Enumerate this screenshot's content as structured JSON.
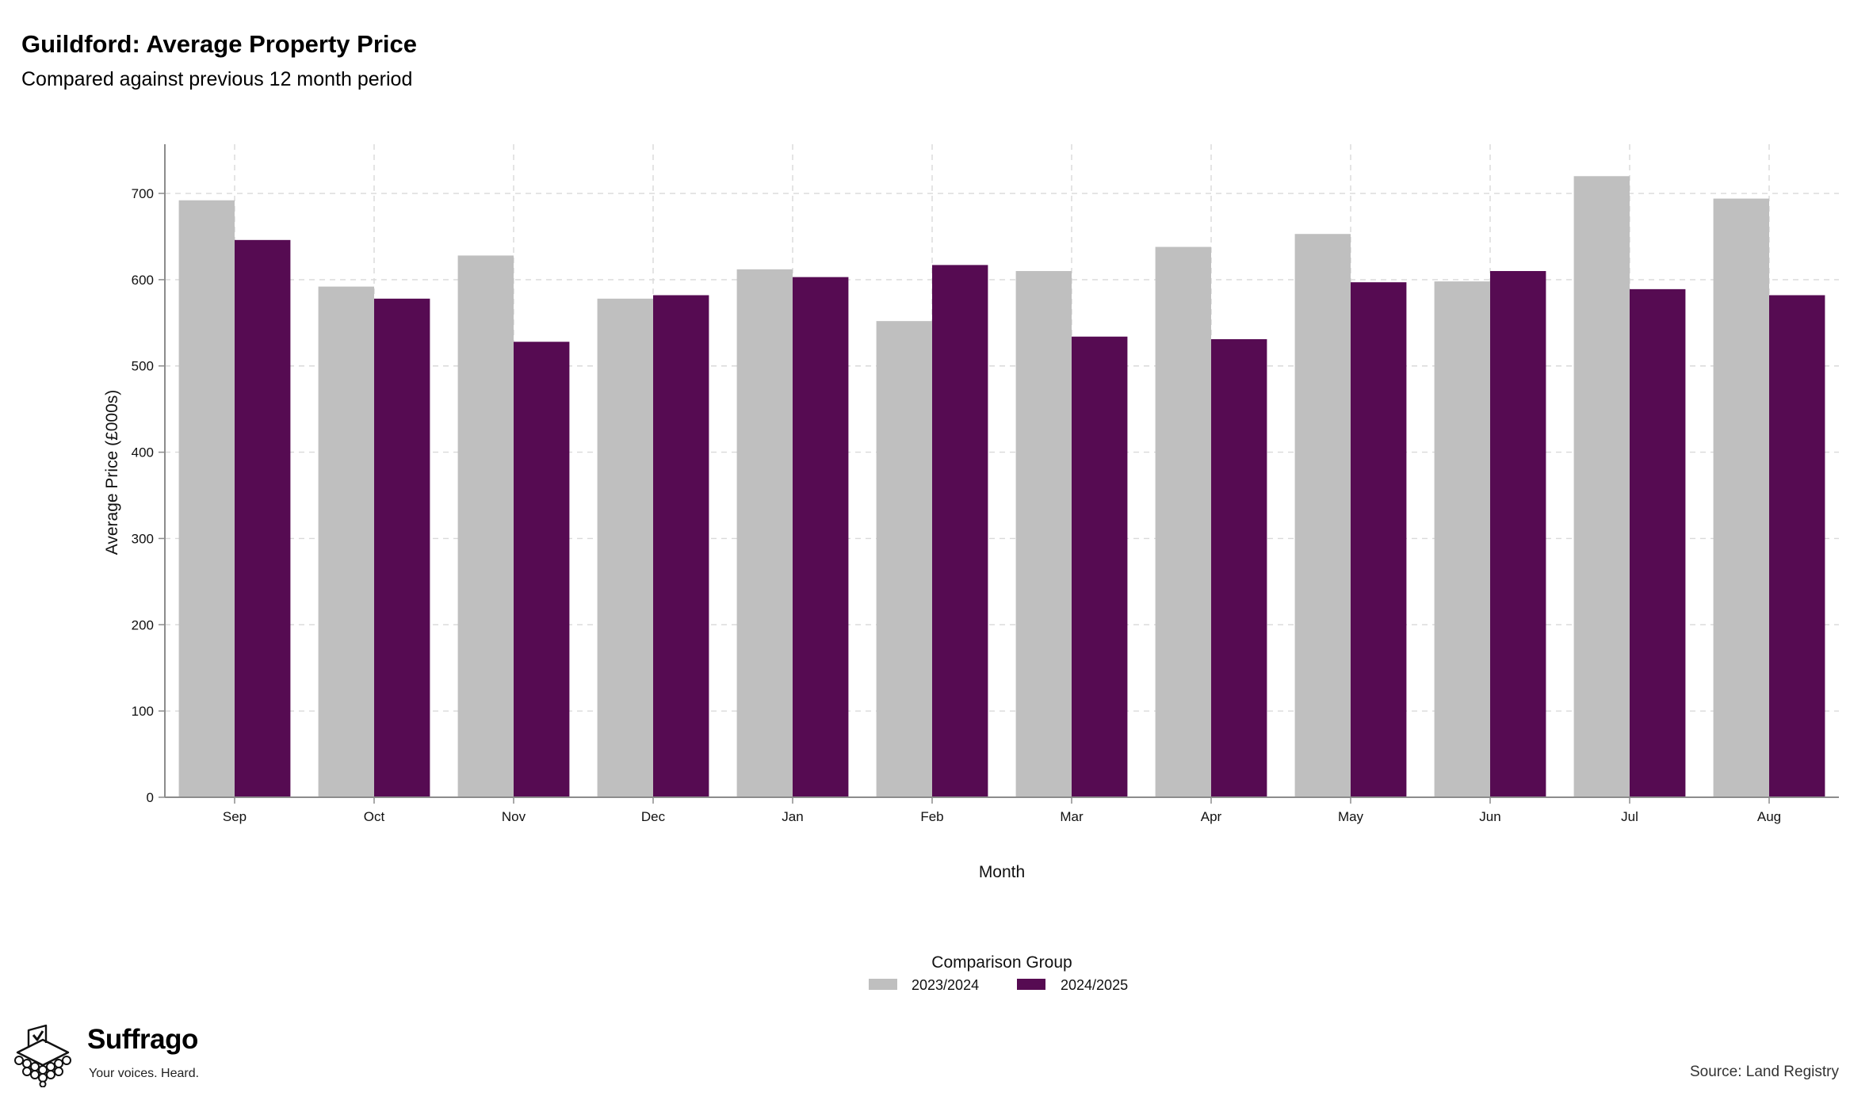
{
  "title": "Guildford: Average Property Price",
  "subtitle": "Compared against previous 12 month period",
  "logo": {
    "name": "Suffrago",
    "tagline": "Your voices. Heard."
  },
  "source": "Source: Land Registry",
  "colors": {
    "series_2023": "#bfbfbf",
    "series_2024": "#560b52",
    "grid": "#d9d9d9",
    "axis": "#8c8c8c"
  },
  "chart_data": {
    "type": "bar",
    "xlabel": "Month",
    "ylabel": "Average Price (£000s)",
    "ylim": [
      0,
      757
    ],
    "yticks": [
      0,
      100,
      200,
      300,
      400,
      500,
      600,
      700
    ],
    "grid": true,
    "legend_position": "bottom-center",
    "legend_title": "Comparison Group",
    "categories": [
      "Sep",
      "Oct",
      "Nov",
      "Dec",
      "Jan",
      "Feb",
      "Mar",
      "Apr",
      "May",
      "Jun",
      "Jul",
      "Aug"
    ],
    "series": [
      {
        "name": "2023/2024",
        "color": "#bfbfbf",
        "values": [
          692,
          592,
          628,
          578,
          612,
          552,
          610,
          638,
          653,
          598,
          720,
          694
        ]
      },
      {
        "name": "2024/2025",
        "color": "#560b52",
        "values": [
          646,
          578,
          528,
          582,
          603,
          617,
          534,
          531,
          597,
          610,
          589,
          582
        ]
      }
    ]
  }
}
